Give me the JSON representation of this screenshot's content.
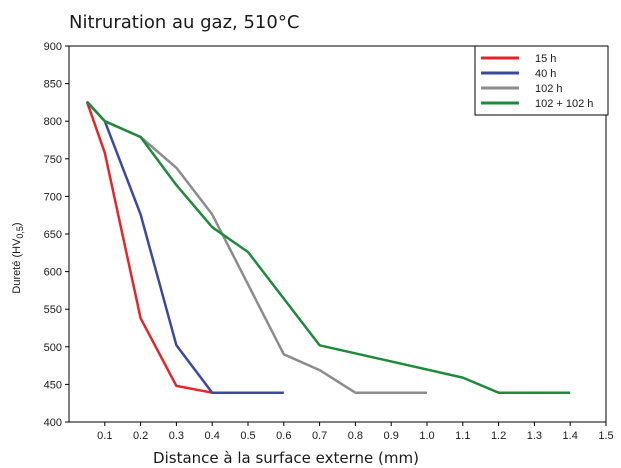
{
  "chart_data": {
    "type": "line",
    "title": "Nitruration au gaz, 510°C",
    "xlabel": "Distance à la surface externe (mm)",
    "ylabel": {
      "prefix": "Dureté (HV",
      "subscript": "0,5",
      "suffix": ")"
    },
    "xlim": [
      0,
      1.5
    ],
    "ylim": [
      400,
      900
    ],
    "xticks": [
      "0.1",
      "0.2",
      "0.3",
      "0.4",
      "0.5",
      "0.6",
      "0.7",
      "0.8",
      "0.9",
      "1.0",
      "1.1",
      "1.2",
      "1.3",
      "1.4",
      "1.5"
    ],
    "yticks": [
      "400",
      "450",
      "500",
      "550",
      "600",
      "650",
      "700",
      "750",
      "800",
      "850",
      "900"
    ],
    "legend_position": "top-right",
    "grid": false,
    "series": [
      {
        "name": "15 h",
        "color": "#e3262a",
        "points": [
          [
            0.05,
            826
          ],
          [
            0.1,
            758
          ],
          [
            0.2,
            538
          ],
          [
            0.3,
            448
          ],
          [
            0.4,
            439
          ],
          [
            0.6,
            439
          ]
        ]
      },
      {
        "name": "40 h",
        "color": "#3b4a9e",
        "points": [
          [
            0.05,
            826
          ],
          [
            0.1,
            800
          ],
          [
            0.2,
            676
          ],
          [
            0.3,
            502
          ],
          [
            0.4,
            439
          ],
          [
            0.6,
            439
          ]
        ]
      },
      {
        "name": "102 h",
        "color": "#8c8c8c",
        "points": [
          [
            0.05,
            826
          ],
          [
            0.1,
            800
          ],
          [
            0.2,
            779
          ],
          [
            0.3,
            738
          ],
          [
            0.4,
            676
          ],
          [
            0.6,
            490
          ],
          [
            0.7,
            469
          ],
          [
            0.8,
            439
          ],
          [
            1.0,
            439
          ]
        ]
      },
      {
        "name": "102 + 102 h",
        "color": "#1f8a3c",
        "points": [
          [
            0.05,
            826
          ],
          [
            0.1,
            800
          ],
          [
            0.2,
            779
          ],
          [
            0.3,
            715
          ],
          [
            0.4,
            659
          ],
          [
            0.5,
            626
          ],
          [
            0.7,
            502
          ],
          [
            1.1,
            459
          ],
          [
            1.2,
            439
          ],
          [
            1.4,
            439
          ]
        ]
      }
    ]
  }
}
